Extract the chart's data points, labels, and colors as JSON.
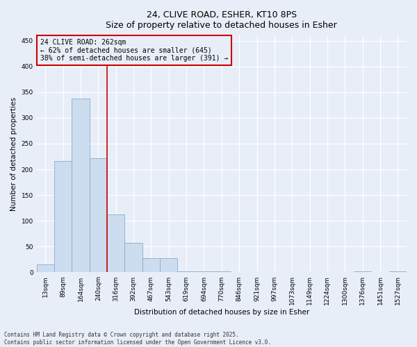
{
  "title_line1": "24, CLIVE ROAD, ESHER, KT10 8PS",
  "title_line2": "Size of property relative to detached houses in Esher",
  "xlabel": "Distribution of detached houses by size in Esher",
  "ylabel": "Number of detached properties",
  "categories": [
    "13sqm",
    "89sqm",
    "164sqm",
    "240sqm",
    "316sqm",
    "392sqm",
    "467sqm",
    "543sqm",
    "619sqm",
    "694sqm",
    "770sqm",
    "846sqm",
    "921sqm",
    "997sqm",
    "1073sqm",
    "1149sqm",
    "1224sqm",
    "1300sqm",
    "1376sqm",
    "1451sqm",
    "1527sqm"
  ],
  "values": [
    15,
    216,
    338,
    222,
    113,
    57,
    28,
    28,
    2,
    2,
    2,
    0,
    0,
    0,
    0,
    0,
    0,
    0,
    2,
    0,
    2
  ],
  "bar_color": "#ccddef",
  "bar_edge_color": "#88aacc",
  "bar_linewidth": 0.6,
  "vline_color": "#cc0000",
  "vline_pos": 3.5,
  "annotation_text": "24 CLIVE ROAD: 262sqm\n← 62% of detached houses are smaller (645)\n38% of semi-detached houses are larger (391) →",
  "annotation_box_color": "#cc0000",
  "ylim": [
    0,
    460
  ],
  "yticks": [
    0,
    50,
    100,
    150,
    200,
    250,
    300,
    350,
    400,
    450
  ],
  "bg_color": "#e8eef8",
  "grid_color": "#ffffff",
  "footnote": "Contains HM Land Registry data © Crown copyright and database right 2025.\nContains public sector information licensed under the Open Government Licence v3.0."
}
